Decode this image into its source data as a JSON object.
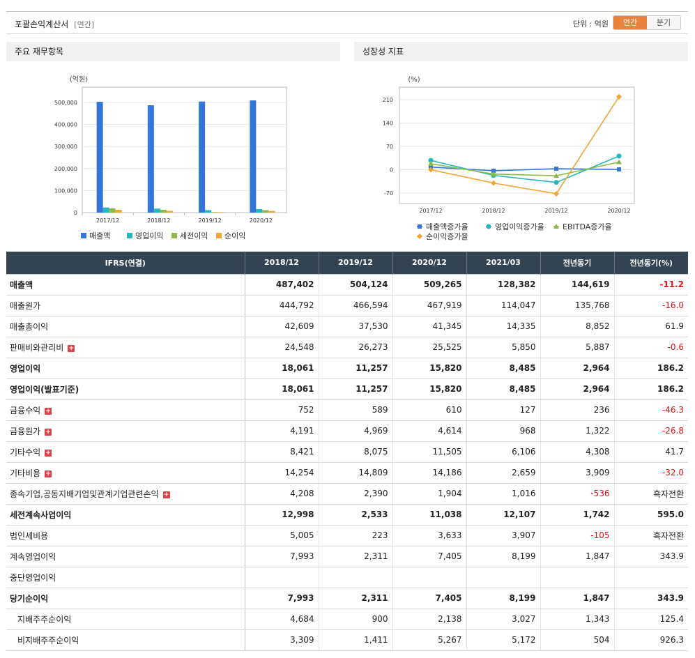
{
  "header": {
    "title": "포괄손익계산서",
    "subtitle": "[연간]",
    "unit": "단위 : 억원",
    "toggle_annual": "연간",
    "toggle_quarter": "분기"
  },
  "left_panel": {
    "title": "주요 재무항목"
  },
  "right_panel": {
    "title": "성장성 지표"
  },
  "chart_data": [
    {
      "type": "bar",
      "unit_label": "(억원)",
      "categories": [
        "2017/12",
        "2018/12",
        "2019/12",
        "2020/12"
      ],
      "ylim": [
        0,
        500000
      ],
      "yticks": [
        "500,000",
        "400,000",
        "300,000",
        "200,000",
        "100,000",
        "0"
      ],
      "ytick_values": [
        500000,
        400000,
        300000,
        200000,
        100000,
        0
      ],
      "legend_position": "bottom",
      "series": [
        {
          "name": "매출액",
          "color": "#3376d7",
          "values": [
            503000,
            487402,
            504124,
            509265
          ]
        },
        {
          "name": "영업이익",
          "color": "#26b6c0",
          "values": [
            23000,
            18061,
            11257,
            15820
          ]
        },
        {
          "name": "세전이익",
          "color": "#8cba47",
          "values": [
            19000,
            12998,
            2533,
            11038
          ]
        },
        {
          "name": "순이익",
          "color": "#f0a535",
          "values": [
            13000,
            7993,
            2311,
            7405
          ]
        }
      ]
    },
    {
      "type": "line",
      "unit_label": "(%)",
      "categories": [
        "2017/12",
        "2018/12",
        "2019/12",
        "2020/12"
      ],
      "ylim": [
        -90,
        225
      ],
      "yticks": [
        "210",
        "140",
        "70",
        "0",
        "-70"
      ],
      "ytick_values": [
        210,
        140,
        70,
        0,
        -70
      ],
      "legend_position": "bottom",
      "series": [
        {
          "name": "매출액증가율",
          "color": "#3376d7",
          "marker": "square",
          "values": [
            8,
            -3,
            3,
            1
          ]
        },
        {
          "name": "영업이익증가율",
          "color": "#26b6c0",
          "marker": "circle",
          "values": [
            28,
            -17,
            -38,
            41
          ]
        },
        {
          "name": "EBITDA증가율",
          "color": "#8cba47",
          "marker": "triangle",
          "values": [
            18,
            -13,
            -18,
            23
          ]
        },
        {
          "name": "순이익증가율",
          "color": "#f0a535",
          "marker": "diamond",
          "values": [
            0,
            -40,
            -72,
            219
          ]
        }
      ]
    }
  ],
  "table": {
    "headers": [
      "IFRS(연결)",
      "2018/12",
      "2019/12",
      "2020/12",
      "2021/03",
      "전년동기",
      "전년동기(%)"
    ],
    "rows": [
      {
        "label": "매출액",
        "bold": true,
        "values": [
          "487,402",
          "504,124",
          "509,265",
          "128,382",
          "144,619",
          "-11.2"
        ]
      },
      {
        "label": "매출원가",
        "values": [
          "444,792",
          "466,594",
          "467,919",
          "114,047",
          "135,768",
          "-16.0"
        ]
      },
      {
        "label": "매출총이익",
        "values": [
          "42,609",
          "37,530",
          "41,345",
          "14,335",
          "8,852",
          "61.9"
        ]
      },
      {
        "label": "판매비와관리비",
        "expand": true,
        "values": [
          "24,548",
          "26,273",
          "25,525",
          "5,850",
          "5,887",
          "-0.6"
        ]
      },
      {
        "label": "영업이익",
        "bold": true,
        "values": [
          "18,061",
          "11,257",
          "15,820",
          "8,485",
          "2,964",
          "186.2"
        ]
      },
      {
        "label": "영업이익(발표기준)",
        "bold": true,
        "values": [
          "18,061",
          "11,257",
          "15,820",
          "8,485",
          "2,964",
          "186.2"
        ]
      },
      {
        "label": "금융수익",
        "expand": true,
        "values": [
          "752",
          "589",
          "610",
          "127",
          "236",
          "-46.3"
        ]
      },
      {
        "label": "금융원가",
        "expand": true,
        "values": [
          "4,191",
          "4,969",
          "4,614",
          "968",
          "1,322",
          "-26.8"
        ]
      },
      {
        "label": "기타수익",
        "expand": true,
        "values": [
          "8,421",
          "8,075",
          "11,505",
          "6,106",
          "4,308",
          "41.7"
        ]
      },
      {
        "label": "기타비용",
        "expand": true,
        "values": [
          "14,254",
          "14,809",
          "14,186",
          "2,659",
          "3,909",
          "-32.0"
        ]
      },
      {
        "label": "종속기업,공동지배기업및관계기업관련손익",
        "expand": true,
        "values": [
          "4,208",
          "2,390",
          "1,904",
          "1,016",
          "-536",
          "흑자전환"
        ]
      },
      {
        "label": "세전계속사업이익",
        "bold": true,
        "values": [
          "12,998",
          "2,533",
          "11,038",
          "12,107",
          "1,742",
          "595.0"
        ]
      },
      {
        "label": "법인세비용",
        "values": [
          "5,005",
          "223",
          "3,633",
          "3,907",
          "-105",
          "흑자전환"
        ]
      },
      {
        "label": "계속영업이익",
        "values": [
          "7,993",
          "2,311",
          "7,405",
          "8,199",
          "1,847",
          "343.9"
        ]
      },
      {
        "label": "중단영업이익",
        "values": [
          "",
          "",
          "",
          "",
          "",
          ""
        ]
      },
      {
        "label": "당기순이익",
        "bold": true,
        "values": [
          "7,993",
          "2,311",
          "7,405",
          "8,199",
          "1,847",
          "343.9"
        ]
      },
      {
        "label": "지배주주순이익",
        "indent": true,
        "values": [
          "4,684",
          "900",
          "2,138",
          "3,027",
          "1,343",
          "125.4"
        ]
      },
      {
        "label": "비지배주주순이익",
        "indent": true,
        "values": [
          "3,309",
          "1,411",
          "5,267",
          "5,172",
          "504",
          "926.3"
        ]
      }
    ]
  }
}
